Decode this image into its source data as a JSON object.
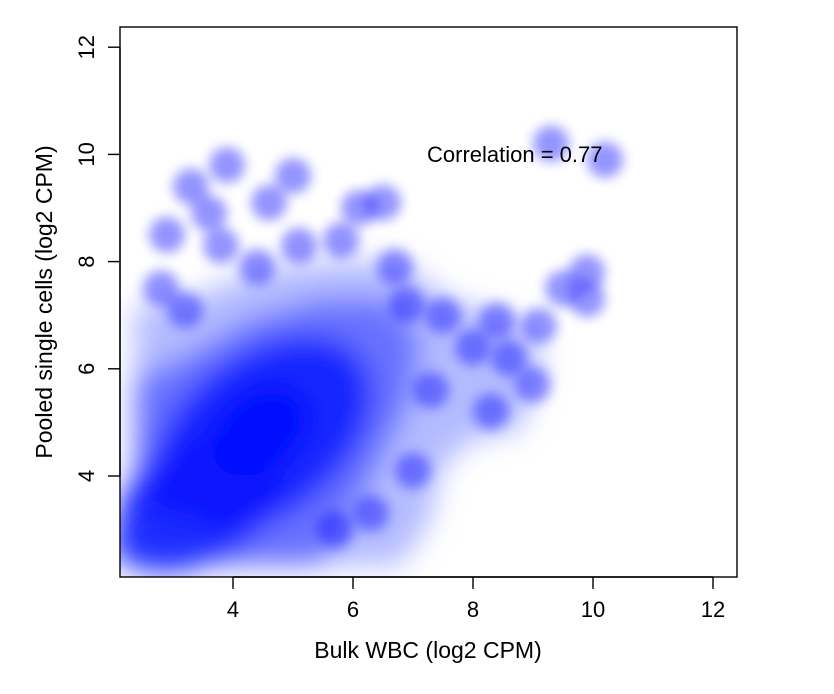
{
  "chart_data": {
    "type": "scatter",
    "rendering": "smoothed density scatter",
    "xlabel": "Bulk WBC (log2 CPM)",
    "ylabel": "Pooled single cells (log2 CPM)",
    "xlim": [
      2.2,
      12.4
    ],
    "ylim": [
      2.2,
      12.4
    ],
    "x_ticks": [
      4,
      6,
      8,
      10,
      12
    ],
    "y_ticks": [
      4,
      6,
      8,
      10,
      12
    ],
    "annotation": "Correlation = 0.77",
    "color": "#0000ff",
    "grid": false,
    "legend": false,
    "points": [
      {
        "x": 2.9,
        "y": 8.5
      },
      {
        "x": 3.3,
        "y": 9.4
      },
      {
        "x": 3.6,
        "y": 8.9
      },
      {
        "x": 3.9,
        "y": 9.8
      },
      {
        "x": 3.8,
        "y": 8.3
      },
      {
        "x": 4.6,
        "y": 9.1
      },
      {
        "x": 5.0,
        "y": 9.6
      },
      {
        "x": 5.1,
        "y": 8.3
      },
      {
        "x": 4.4,
        "y": 7.9
      },
      {
        "x": 5.8,
        "y": 8.4
      },
      {
        "x": 6.1,
        "y": 9.0
      },
      {
        "x": 6.5,
        "y": 9.1
      },
      {
        "x": 6.7,
        "y": 7.9
      },
      {
        "x": 2.8,
        "y": 7.5
      },
      {
        "x": 3.2,
        "y": 7.1
      },
      {
        "x": 6.9,
        "y": 7.2
      },
      {
        "x": 7.5,
        "y": 7.0
      },
      {
        "x": 8.0,
        "y": 6.4
      },
      {
        "x": 8.4,
        "y": 6.9
      },
      {
        "x": 8.6,
        "y": 6.2
      },
      {
        "x": 9.1,
        "y": 6.8
      },
      {
        "x": 9.0,
        "y": 5.7
      },
      {
        "x": 8.3,
        "y": 5.2
      },
      {
        "x": 7.3,
        "y": 5.6
      },
      {
        "x": 9.3,
        "y": 10.2
      },
      {
        "x": 10.2,
        "y": 9.9
      },
      {
        "x": 9.5,
        "y": 7.5
      },
      {
        "x": 9.9,
        "y": 7.8
      },
      {
        "x": 9.9,
        "y": 7.3
      },
      {
        "x": 7.0,
        "y": 4.1
      },
      {
        "x": 6.3,
        "y": 3.3
      },
      {
        "x": 5.7,
        "y": 3.0
      }
    ]
  }
}
